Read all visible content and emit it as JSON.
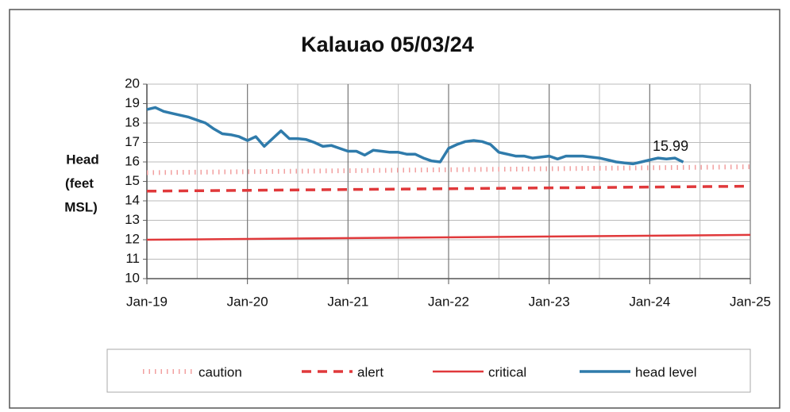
{
  "chart_data": {
    "type": "line",
    "title": "Kalauao 05/03/24",
    "y_label": [
      "Head",
      "(feet",
      "MSL)"
    ],
    "xlim": [
      "2019-01",
      "2025-01"
    ],
    "xticks": [
      {
        "value": "2019-01",
        "label": "Jan-19"
      },
      {
        "value": "2020-01",
        "label": "Jan-20"
      },
      {
        "value": "2021-01",
        "label": "Jan-21"
      },
      {
        "value": "2022-01",
        "label": "Jan-22"
      },
      {
        "value": "2023-01",
        "label": "Jan-23"
      },
      {
        "value": "2024-01",
        "label": "Jan-24"
      },
      {
        "value": "2025-01",
        "label": "Jan-25"
      }
    ],
    "ylim": [
      10,
      20
    ],
    "yticks": [
      10,
      11,
      12,
      13,
      14,
      15,
      16,
      17,
      18,
      19,
      20
    ],
    "grid": true,
    "legend": "bottom",
    "series": [
      {
        "name": "caution",
        "color": "#f2a0a0",
        "style": "dotted",
        "x": [
          "2019-01",
          "2025-01"
        ],
        "values": [
          15.45,
          15.75
        ]
      },
      {
        "name": "alert",
        "color": "#e0393b",
        "style": "dashed",
        "x": [
          "2019-01",
          "2025-01"
        ],
        "values": [
          14.5,
          14.75
        ]
      },
      {
        "name": "critical",
        "color": "#e0393b",
        "style": "solid",
        "x": [
          "2019-01",
          "2025-01"
        ],
        "values": [
          12.0,
          12.25
        ]
      },
      {
        "name": "head level",
        "color": "#2f7bab",
        "style": "solid",
        "x": [
          "2019-01",
          "2019-02",
          "2019-03",
          "2019-04",
          "2019-05",
          "2019-06",
          "2019-07",
          "2019-08",
          "2019-09",
          "2019-10",
          "2019-11",
          "2019-12",
          "2020-01",
          "2020-02",
          "2020-03",
          "2020-04",
          "2020-05",
          "2020-06",
          "2020-07",
          "2020-08",
          "2020-09",
          "2020-10",
          "2020-11",
          "2020-12",
          "2021-01",
          "2021-02",
          "2021-03",
          "2021-04",
          "2021-05",
          "2021-06",
          "2021-07",
          "2021-08",
          "2021-09",
          "2021-10",
          "2021-11",
          "2021-12",
          "2022-01",
          "2022-02",
          "2022-03",
          "2022-04",
          "2022-05",
          "2022-06",
          "2022-07",
          "2022-08",
          "2022-09",
          "2022-10",
          "2022-11",
          "2022-12",
          "2023-01",
          "2023-02",
          "2023-03",
          "2023-04",
          "2023-05",
          "2023-06",
          "2023-07",
          "2023-08",
          "2023-09",
          "2023-10",
          "2023-11",
          "2023-12",
          "2024-01",
          "2024-02",
          "2024-03",
          "2024-04",
          "2024-05"
        ],
        "values": [
          18.7,
          18.8,
          18.6,
          18.5,
          18.4,
          18.3,
          18.15,
          18.0,
          17.7,
          17.45,
          17.4,
          17.3,
          17.1,
          17.3,
          16.8,
          17.2,
          17.6,
          17.2,
          17.2,
          17.15,
          17.0,
          16.8,
          16.85,
          16.7,
          16.55,
          16.55,
          16.35,
          16.6,
          16.55,
          16.5,
          16.5,
          16.4,
          16.4,
          16.2,
          16.05,
          16.0,
          16.7,
          16.9,
          17.05,
          17.1,
          17.05,
          16.9,
          16.5,
          16.4,
          16.3,
          16.3,
          16.2,
          16.25,
          16.3,
          16.15,
          16.3,
          16.3,
          16.3,
          16.25,
          16.2,
          16.1,
          16.0,
          15.95,
          15.9,
          16.0,
          16.1,
          16.2,
          16.15,
          16.2,
          15.99
        ]
      }
    ]
  }
}
